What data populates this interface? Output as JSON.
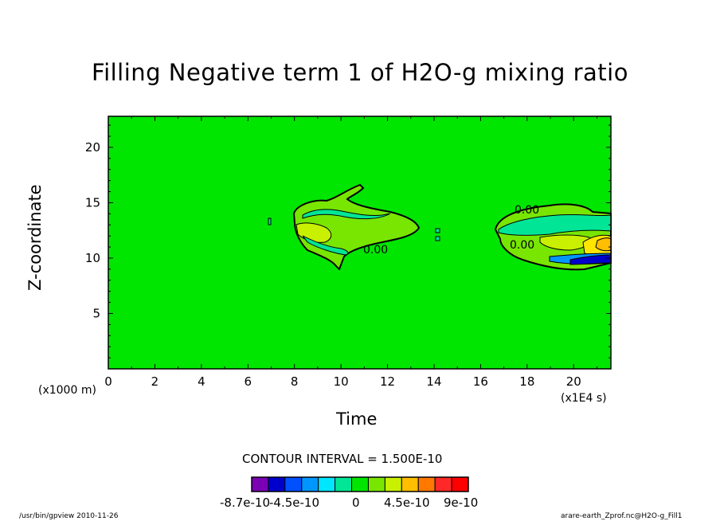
{
  "title": "Filling Negative term 1 of H2O-g mixing ratio",
  "chart_data": {
    "type": "heatmap",
    "title": "Filling Negative term 1 of H2O-g mixing ratio",
    "xlabel": "Time",
    "ylabel": "Z-coordinate",
    "x_unit": "(x1E4 s)",
    "y_unit": "(x1000 m)",
    "xlim": [
      0,
      21.6
    ],
    "ylim": [
      0,
      22.8
    ],
    "x_ticks": [
      0,
      2,
      4,
      6,
      8,
      10,
      12,
      14,
      16,
      18,
      20
    ],
    "y_ticks": [
      5,
      10,
      15,
      20
    ],
    "background_level": 0,
    "contour_interval": "CONTOUR INTERVAL = 1.500E-10",
    "contour_labels": [
      "0.00",
      "0.00",
      "0.00"
    ],
    "colorbar": {
      "levels": [
        -8.7e-10,
        -4.5e-10,
        0,
        4.5e-10,
        9e-10
      ],
      "tick_labels": [
        "-8.7e-10",
        "-4.5e-10",
        "0",
        "4.5e-10",
        "9e-10"
      ],
      "colors": [
        "#7b00b4",
        "#0000cd",
        "#0050ff",
        "#0096ff",
        "#00e6ff",
        "#00e696",
        "#00e600",
        "#78e600",
        "#c8f000",
        "#ffbe00",
        "#ff7800",
        "#ff2828",
        "#ff0000"
      ]
    },
    "features": [
      {
        "x_range": [
          7.8,
          13.5
        ],
        "z_range": [
          9,
          16.8
        ],
        "level": "small positive",
        "color": "#78e600"
      },
      {
        "x_range": [
          16.8,
          21.6
        ],
        "z_range": [
          9.3,
          14.7
        ],
        "level": "mixed positive/negative",
        "color": "#ffe600"
      }
    ],
    "grid": false
  },
  "footer": {
    "left": "/usr/bin/gpview  2010-11-26",
    "right": "arare-earth_Zprof.nc@H2O-g_Fill1"
  }
}
